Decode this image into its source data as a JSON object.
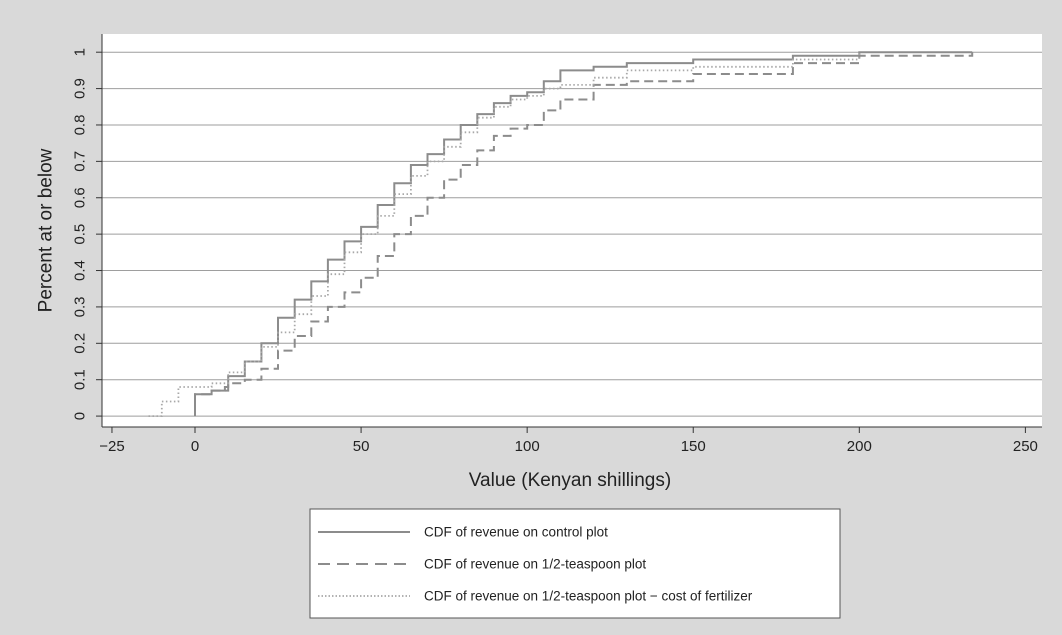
{
  "chart_data": {
    "type": "line",
    "title": "",
    "xlabel": "Value (Kenyan shillings)",
    "ylabel": "Percent at or below",
    "xlim": [
      -28,
      255
    ],
    "ylim": [
      -0.03,
      1.05
    ],
    "x_ticks": [
      -25,
      0,
      50,
      100,
      150,
      200,
      250
    ],
    "x_tick_labels": [
      "−25",
      "0",
      "50",
      "100",
      "150",
      "200",
      "250"
    ],
    "y_ticks": [
      0,
      0.1,
      0.2,
      0.3,
      0.4,
      0.5,
      0.6,
      0.7,
      0.8,
      0.9,
      1
    ],
    "y_tick_labels": [
      "0",
      "0.1",
      "0.2",
      "0.3",
      "0.4",
      "0.5",
      "0.6",
      "0.7",
      "0.8",
      "0.9",
      "1"
    ],
    "grid": "horizontal",
    "legend_position": "bottom",
    "series": [
      {
        "name": "CDF of revenue on control plot",
        "style": "solid",
        "color": "#8c8c8c",
        "x": [
          0,
          0,
          5,
          9,
          10,
          15,
          20,
          25,
          30,
          35,
          40,
          45,
          50,
          55,
          60,
          65,
          70,
          75,
          80,
          85,
          90,
          95,
          100,
          105,
          110,
          120,
          130,
          150,
          180,
          200,
          234
        ],
        "y": [
          0,
          0.06,
          0.07,
          0.08,
          0.11,
          0.15,
          0.2,
          0.27,
          0.32,
          0.37,
          0.43,
          0.48,
          0.52,
          0.58,
          0.64,
          0.69,
          0.72,
          0.76,
          0.8,
          0.83,
          0.86,
          0.88,
          0.89,
          0.92,
          0.95,
          0.96,
          0.97,
          0.98,
          0.99,
          1.0,
          1.0
        ]
      },
      {
        "name": "CDF of revenue on 1/2-teaspoon plot",
        "style": "dashed",
        "color": "#8c8c8c",
        "x": [
          0,
          0,
          5,
          10,
          15,
          20,
          25,
          30,
          35,
          40,
          45,
          50,
          55,
          60,
          65,
          70,
          75,
          80,
          85,
          90,
          95,
          100,
          105,
          110,
          120,
          130,
          150,
          180,
          200,
          234
        ],
        "y": [
          0,
          0.06,
          0.07,
          0.09,
          0.1,
          0.13,
          0.18,
          0.22,
          0.26,
          0.3,
          0.34,
          0.38,
          0.44,
          0.5,
          0.55,
          0.6,
          0.65,
          0.69,
          0.73,
          0.77,
          0.79,
          0.8,
          0.84,
          0.87,
          0.91,
          0.92,
          0.94,
          0.97,
          0.99,
          1.0
        ]
      },
      {
        "name": "CDF of revenue on 1/2-teaspoon plot − cost of fertilizer",
        "style": "dotted",
        "color": "#a8a8a8",
        "x": [
          -14,
          -10,
          -5,
          0,
          5,
          10,
          15,
          20,
          25,
          30,
          35,
          40,
          45,
          50,
          55,
          60,
          65,
          70,
          75,
          80,
          85,
          90,
          95,
          100,
          105,
          110,
          120,
          130,
          150,
          180,
          200
        ],
        "y": [
          0,
          0.04,
          0.08,
          0.08,
          0.09,
          0.12,
          0.15,
          0.19,
          0.23,
          0.28,
          0.33,
          0.39,
          0.45,
          0.5,
          0.55,
          0.61,
          0.66,
          0.7,
          0.74,
          0.78,
          0.82,
          0.85,
          0.87,
          0.88,
          0.9,
          0.91,
          0.93,
          0.95,
          0.96,
          0.98,
          1.0
        ]
      }
    ]
  }
}
